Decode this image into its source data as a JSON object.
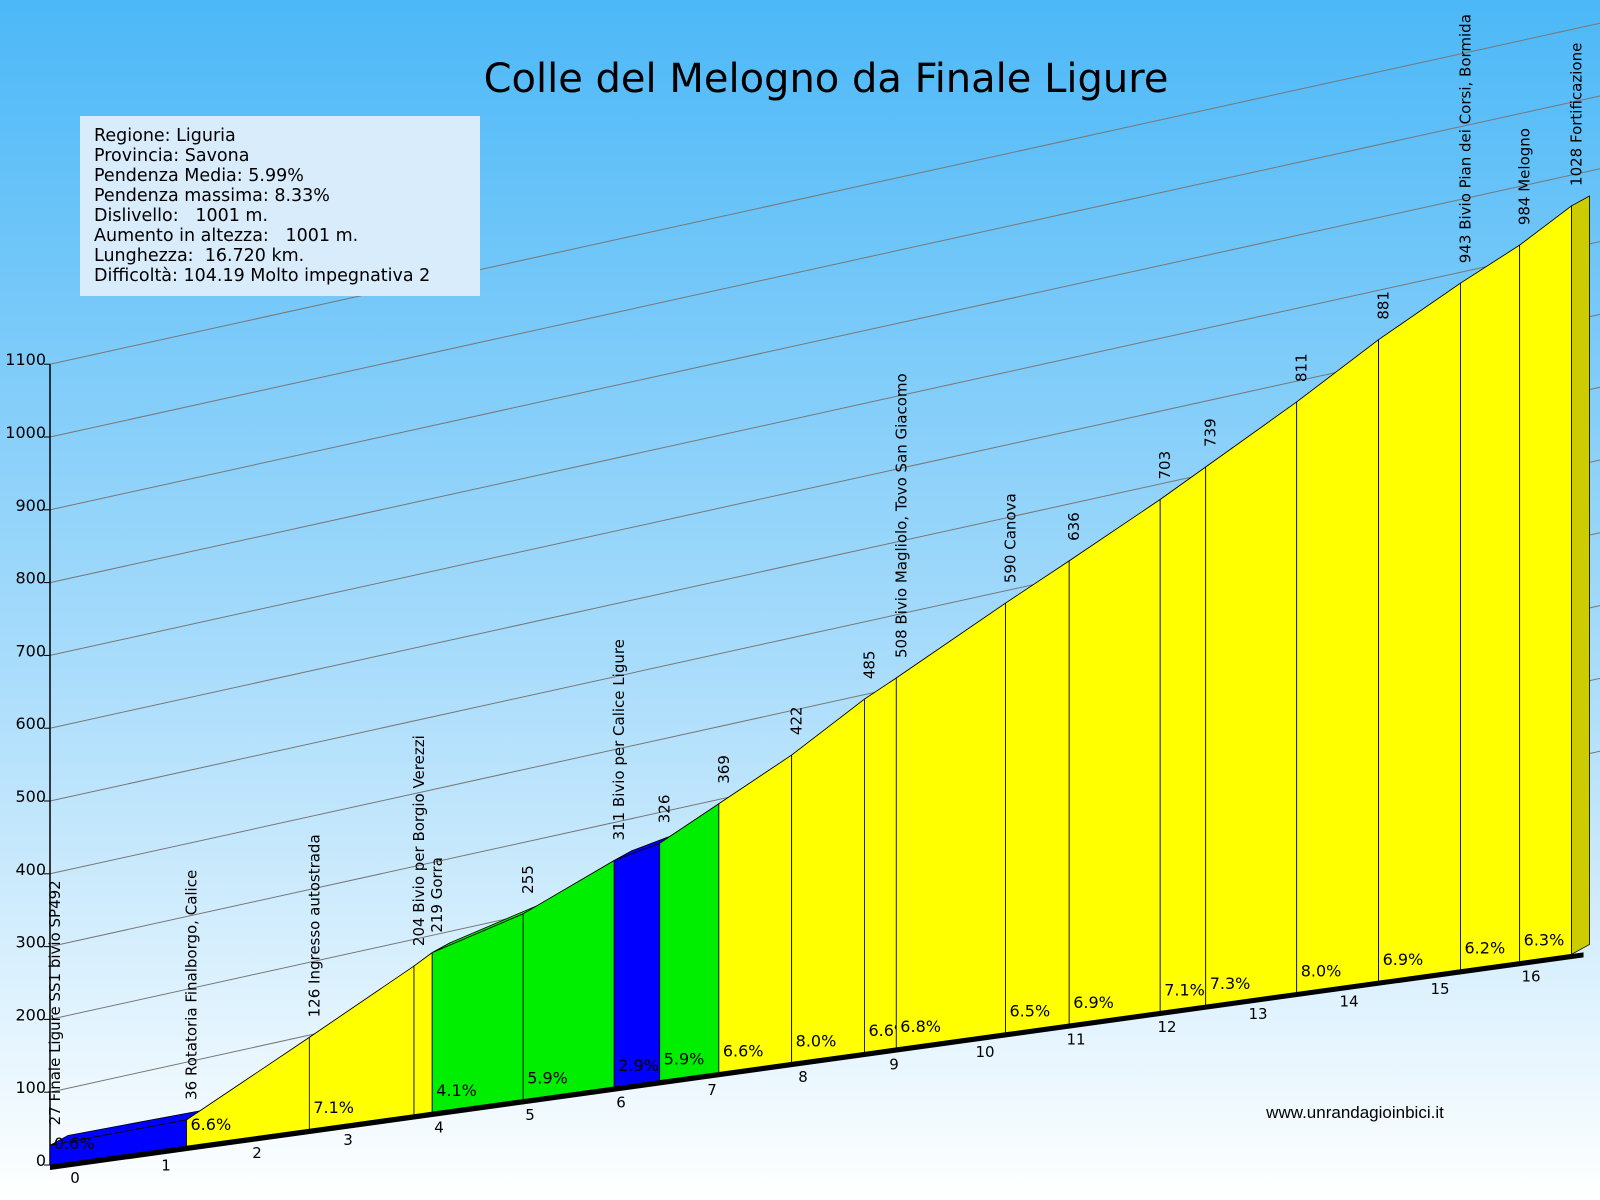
{
  "chart_data": {
    "type": "area",
    "title": "Colle del Melogno da Finale Ligure",
    "info": [
      "Regione: Liguria",
      "Provincia: Savona",
      "Pendenza Media: 5.99%",
      "Pendenza massima: 8.33%",
      "Dislivello:   1001 m.",
      "Aumento in altezza:   1001 m.",
      "Lunghezza:  16.720 km.",
      "Difficoltà: 104.19 Molto impegnativa 2"
    ],
    "credit": "www.unrandagioinbici.it",
    "ylim": [
      0,
      1100
    ],
    "yticks": [
      "0",
      "100",
      "200",
      "300",
      "400",
      "500",
      "600",
      "700",
      "800",
      "900",
      "1000",
      "1100"
    ],
    "xlim": [
      0,
      16.72
    ],
    "xticks": [
      "0",
      "1",
      "2",
      "3",
      "4",
      "5",
      "6",
      "7",
      "8",
      "9",
      "10",
      "11",
      "12",
      "13",
      "14",
      "15",
      "16"
    ],
    "points": [
      {
        "km": 0,
        "alt": 27,
        "label": "27 Finale Ligure SS1 bivio SP492"
      },
      {
        "km": 1.5,
        "alt": 36,
        "label": "36 Rotatoria Finalborgo, Calice"
      },
      {
        "km": 2.85,
        "alt": 126,
        "label": "126 Ingresso autostrada"
      },
      {
        "km": 4.0,
        "alt": 204,
        "label": "204 Bivio per Borgio Verezzi"
      },
      {
        "km": 4.2,
        "alt": 219,
        "label": "219 Gorra"
      },
      {
        "km": 5.2,
        "alt": 255,
        "label": "255"
      },
      {
        "km": 6.2,
        "alt": 311,
        "label": "311 Bivio per Calice Ligure"
      },
      {
        "km": 6.7,
        "alt": 326,
        "label": "326"
      },
      {
        "km": 7.35,
        "alt": 369,
        "label": "369"
      },
      {
        "km": 8.15,
        "alt": 422,
        "label": "422"
      },
      {
        "km": 8.95,
        "alt": 485,
        "label": "485"
      },
      {
        "km": 9.3,
        "alt": 508,
        "label": "508 Bivio Magliolo, Tovo San Giacomo"
      },
      {
        "km": 10.5,
        "alt": 590,
        "label": "590 Canova"
      },
      {
        "km": 11.2,
        "alt": 636,
        "label": "636"
      },
      {
        "km": 12.2,
        "alt": 703,
        "label": "703"
      },
      {
        "km": 12.7,
        "alt": 739,
        "label": "739"
      },
      {
        "km": 13.7,
        "alt": 811,
        "label": "811"
      },
      {
        "km": 14.6,
        "alt": 881,
        "label": "881"
      },
      {
        "km": 15.5,
        "alt": 943,
        "label": "943 Bivio Pian dei Corsi, Bormida"
      },
      {
        "km": 16.15,
        "alt": 984,
        "label": "984 Melogno"
      },
      {
        "km": 16.72,
        "alt": 1028,
        "label": "1028 Fortificazione"
      }
    ],
    "segments": [
      {
        "grade": "0.6%",
        "color": "#0000ff"
      },
      {
        "grade": "6.6%",
        "color": "#ffff00"
      },
      {
        "grade": "7.1%",
        "color": "#ffff00"
      },
      {
        "grade": "",
        "color": "#ffff00"
      },
      {
        "grade": "4.1%",
        "color": "#00ee00"
      },
      {
        "grade": "5.9%",
        "color": "#00ee00"
      },
      {
        "grade": "2.9%",
        "color": "#0000ff"
      },
      {
        "grade": "5.9%",
        "color": "#00ee00"
      },
      {
        "grade": "6.6%",
        "color": "#ffff00"
      },
      {
        "grade": "8.0%",
        "color": "#ffff00"
      },
      {
        "grade": "6.6%",
        "color": "#ffff00"
      },
      {
        "grade": "6.8%",
        "color": "#ffff00"
      },
      {
        "grade": "6.5%",
        "color": "#ffff00"
      },
      {
        "grade": "6.9%",
        "color": "#ffff00"
      },
      {
        "grade": "7.1%",
        "color": "#ffff00"
      },
      {
        "grade": "7.3%",
        "color": "#ffff00"
      },
      {
        "grade": "8.0%",
        "color": "#ffff00"
      },
      {
        "grade": "6.9%",
        "color": "#ffff00"
      },
      {
        "grade": "6.2%",
        "color": "#ffff00"
      },
      {
        "grade": "6.3%",
        "color": "#ffff00"
      }
    ],
    "grid": true
  }
}
